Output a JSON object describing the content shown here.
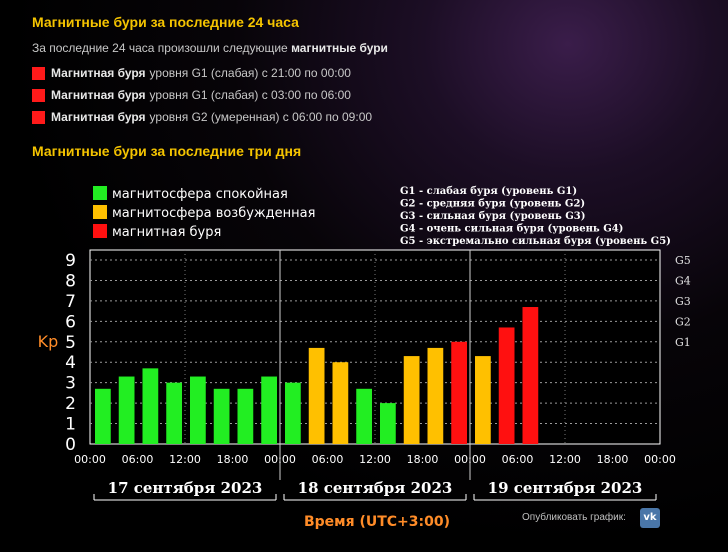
{
  "last24": {
    "title": "Магнитные бури за последние 24 часа",
    "intro_prefix": "За последние 24 часа произошли следующие ",
    "intro_bold": "магнитные бури",
    "storms": [
      {
        "bold": "Магнитная буря",
        "text": "уровня G1 (слабая) с 21:00 по 00:00"
      },
      {
        "bold": "Магнитная буря",
        "text": "уровня G1 (слабая) с 03:00 по 06:00"
      },
      {
        "bold": "Магнитная буря",
        "text": "уровня G2 (умеренная) с 06:00 по 09:00"
      }
    ]
  },
  "three_days_title": "Магнитные бури за последние три дня",
  "colors": {
    "calm": "#22ee22",
    "excited": "#ffc000",
    "storm": "#ff1010",
    "storm_square": "#ff1a1a"
  },
  "chart_data": {
    "type": "bar",
    "ylabel": "Kp",
    "xlabel": "Время (UTC+3:00)",
    "ylim": [
      0,
      9
    ],
    "yticks": [
      "0",
      "1",
      "2",
      "3",
      "4",
      "5",
      "6",
      "7",
      "8",
      "9"
    ],
    "right_ticks": [
      {
        "label": "G1",
        "y": 5
      },
      {
        "label": "G2",
        "y": 6
      },
      {
        "label": "G3",
        "y": 7
      },
      {
        "label": "G4",
        "y": 8
      },
      {
        "label": "G5",
        "y": 9
      }
    ],
    "xticks": [
      "00:00",
      "06:00",
      "12:00",
      "18:00",
      "00:00",
      "06:00",
      "12:00",
      "18:00",
      "00:00",
      "06:00",
      "12:00",
      "18:00",
      "00:00"
    ],
    "days": [
      "17 сентября 2023",
      "18 сентября 2023",
      "19 сентября 2023"
    ],
    "legend": [
      {
        "label": "магнитосфера спокойная",
        "level": "calm"
      },
      {
        "label": "магнитосфера возбужденная",
        "level": "excited"
      },
      {
        "label": "магнитная буря",
        "level": "storm"
      }
    ],
    "scale_legend": [
      "G1 - слабая буря (уровень G1)",
      "G2 - средняя буря (уровень G2)",
      "G3 - сильная буря (уровень G3)",
      "G4 - очень сильная буря (уровень G4)",
      "G5 - экстремально сильная буря (уровень G5)"
    ],
    "grid": true,
    "bars": [
      {
        "day": "17 сентября 2023",
        "start": "00:00",
        "kp": 2.7,
        "level": "calm"
      },
      {
        "day": "17 сентября 2023",
        "start": "03:00",
        "kp": 3.3,
        "level": "calm"
      },
      {
        "day": "17 сентября 2023",
        "start": "06:00",
        "kp": 3.7,
        "level": "calm"
      },
      {
        "day": "17 сентября 2023",
        "start": "09:00",
        "kp": 3.0,
        "level": "calm"
      },
      {
        "day": "17 сентября 2023",
        "start": "12:00",
        "kp": 3.3,
        "level": "calm"
      },
      {
        "day": "17 сентября 2023",
        "start": "15:00",
        "kp": 2.7,
        "level": "calm"
      },
      {
        "day": "17 сентября 2023",
        "start": "18:00",
        "kp": 2.7,
        "level": "calm"
      },
      {
        "day": "17 сентября 2023",
        "start": "21:00",
        "kp": 3.3,
        "level": "calm"
      },
      {
        "day": "18 сентября 2023",
        "start": "00:00",
        "kp": 3.0,
        "level": "calm"
      },
      {
        "day": "18 сентября 2023",
        "start": "03:00",
        "kp": 4.7,
        "level": "excited"
      },
      {
        "day": "18 сентября 2023",
        "start": "06:00",
        "kp": 4.0,
        "level": "excited"
      },
      {
        "day": "18 сентября 2023",
        "start": "09:00",
        "kp": 2.7,
        "level": "calm"
      },
      {
        "day": "18 сентября 2023",
        "start": "12:00",
        "kp": 2.0,
        "level": "calm"
      },
      {
        "day": "18 сентября 2023",
        "start": "15:00",
        "kp": 4.3,
        "level": "excited"
      },
      {
        "day": "18 сентября 2023",
        "start": "18:00",
        "kp": 4.7,
        "level": "excited"
      },
      {
        "day": "18 сентября 2023",
        "start": "21:00",
        "kp": 5.0,
        "level": "storm"
      },
      {
        "day": "19 сентября 2023",
        "start": "00:00",
        "kp": 4.3,
        "level": "excited"
      },
      {
        "day": "19 сентября 2023",
        "start": "03:00",
        "kp": 5.7,
        "level": "storm"
      },
      {
        "day": "19 сентября 2023",
        "start": "06:00",
        "kp": 6.7,
        "level": "storm"
      }
    ]
  },
  "share": {
    "label": "Опубликовать график:",
    "vk_label": "vk"
  }
}
